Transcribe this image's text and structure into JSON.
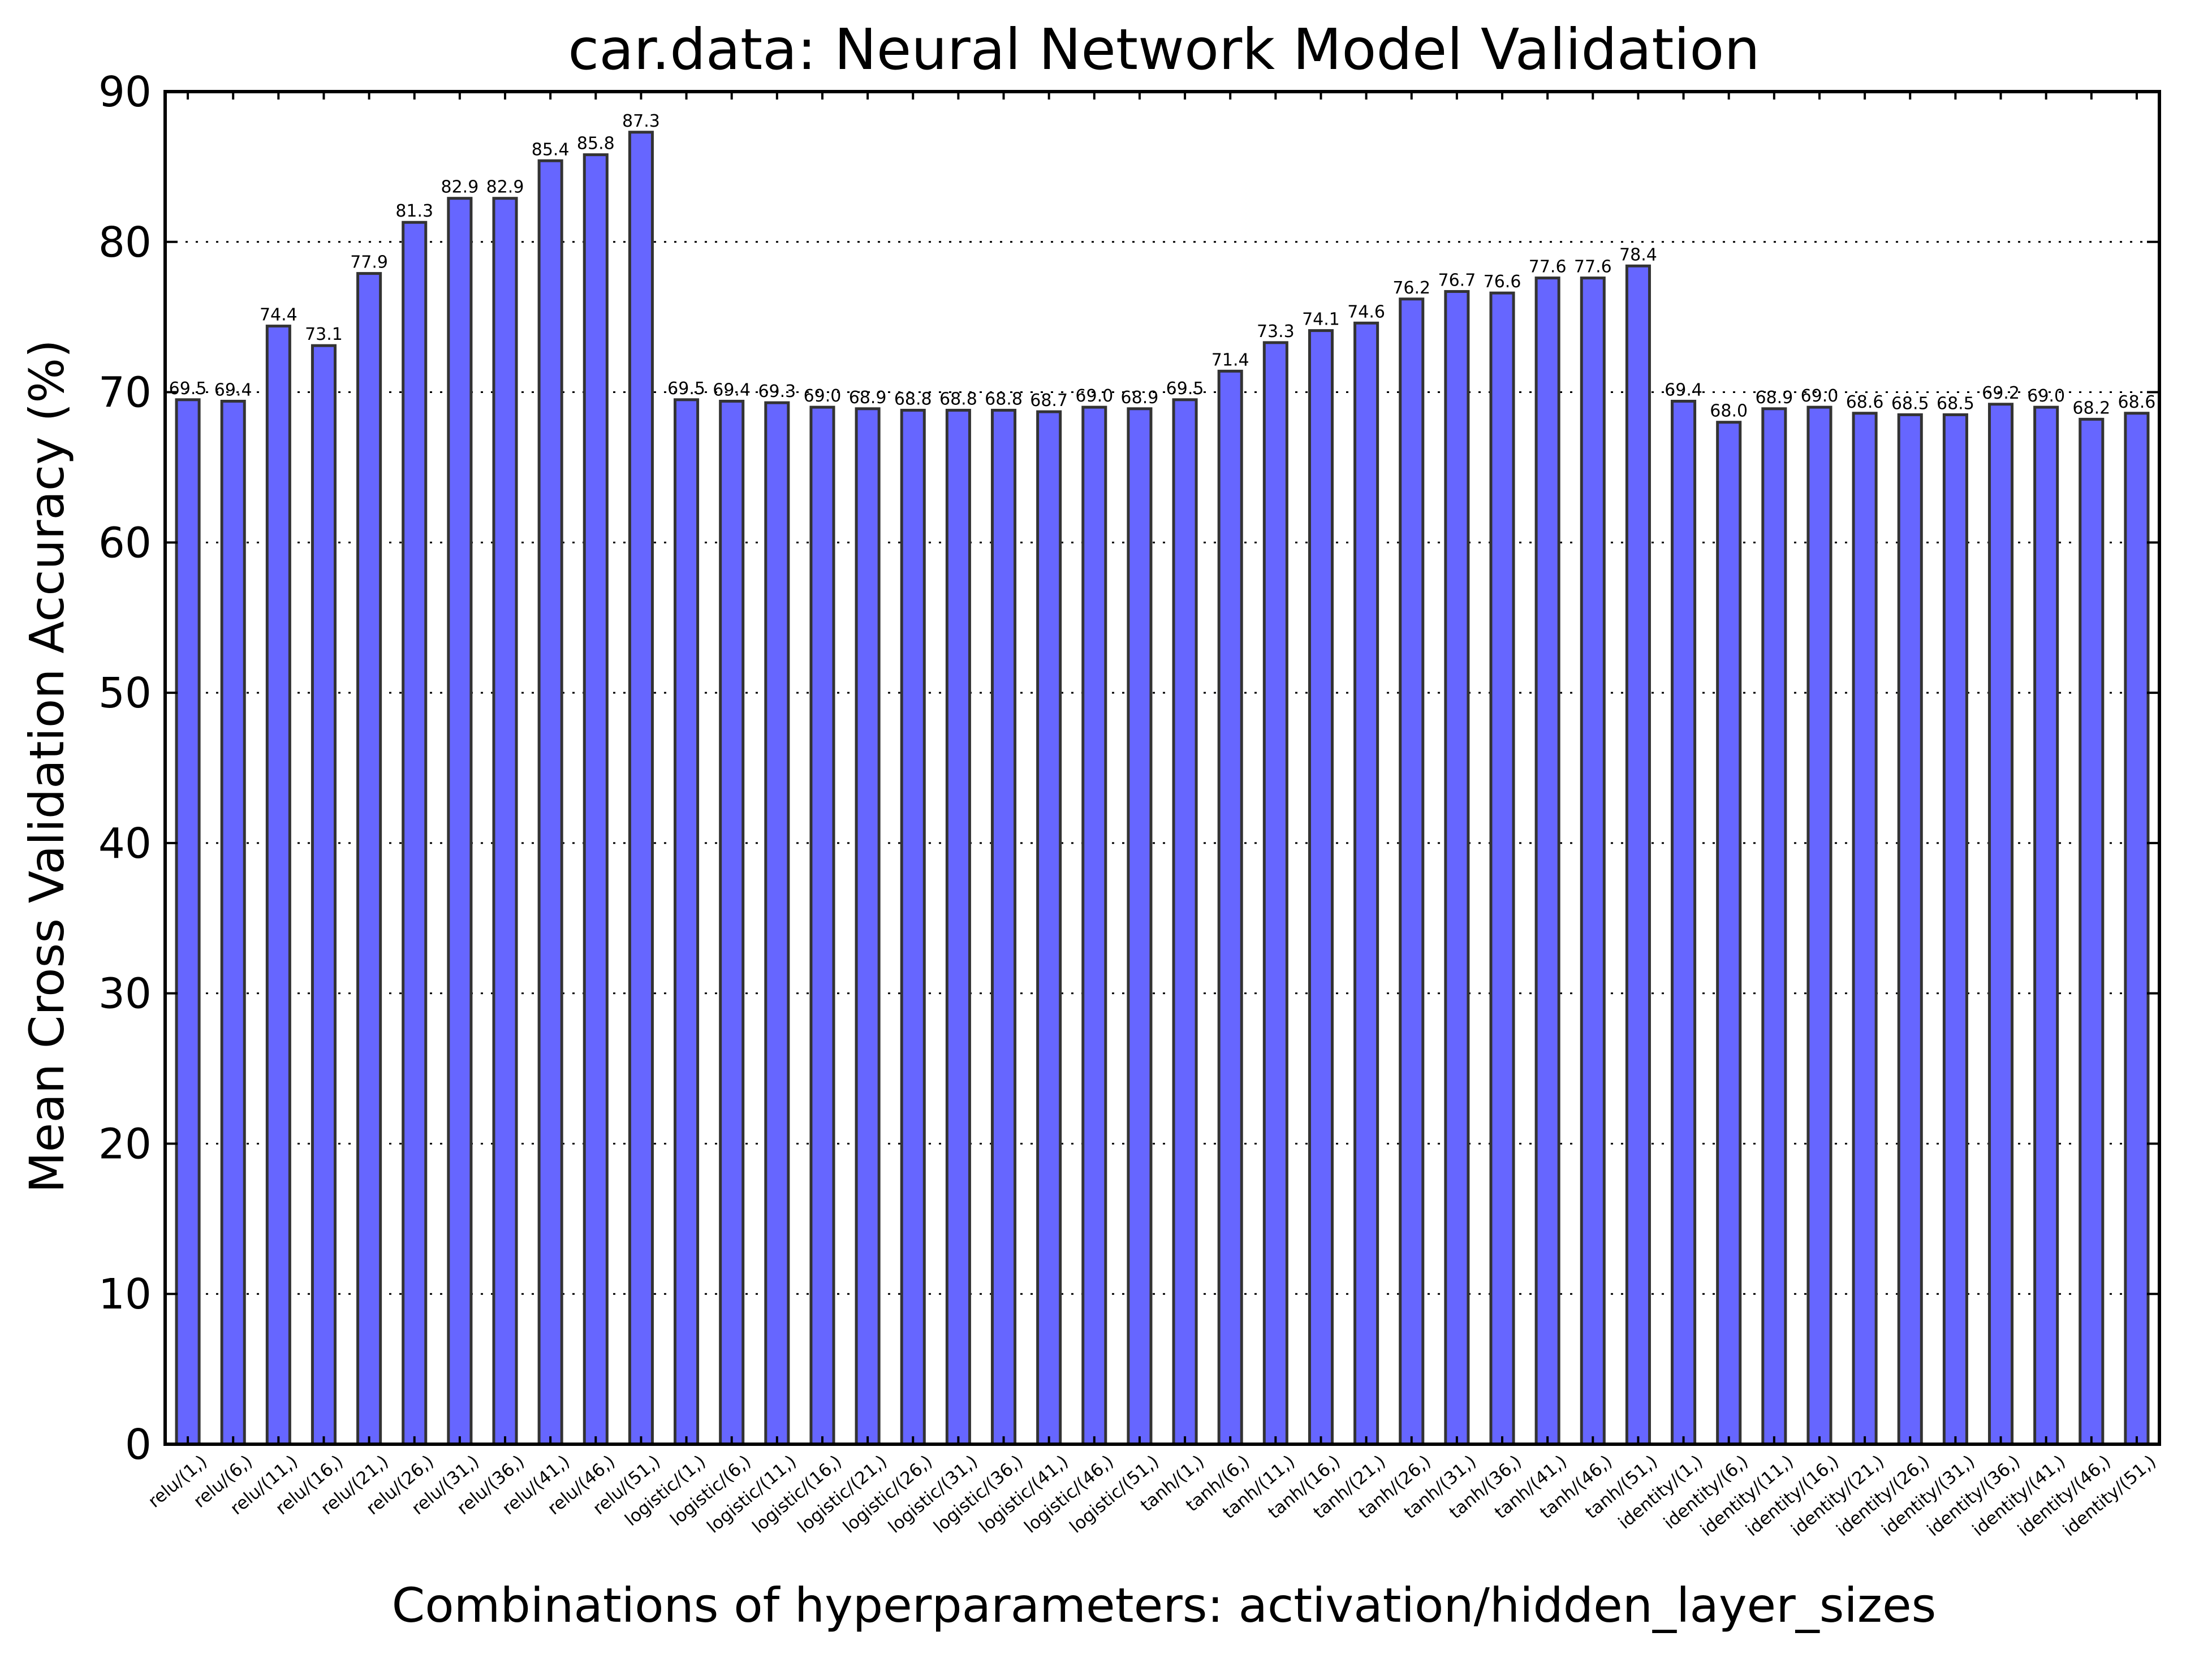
{
  "chart_data": {
    "type": "bar",
    "title": "car.data: Neural Network Model Validation",
    "xlabel": "Combinations of hyperparameters: activation/hidden_layer_sizes",
    "ylabel": "Mean Cross Validation Accuracy (%)",
    "ylim": [
      0,
      90
    ],
    "yticks": [
      "0",
      "10",
      "20",
      "30",
      "40",
      "50",
      "60",
      "70",
      "80",
      "90"
    ],
    "grid": "horizontal dotted",
    "bar_color": "#6666ff",
    "categories": [
      "relu/(1,)",
      "relu/(6,)",
      "relu/(11,)",
      "relu/(16,)",
      "relu/(21,)",
      "relu/(26,)",
      "relu/(31,)",
      "relu/(36,)",
      "relu/(41,)",
      "relu/(46,)",
      "relu/(51,)",
      "logistic/(1,)",
      "logistic/(6,)",
      "logistic/(11,)",
      "logistic/(16,)",
      "logistic/(21,)",
      "logistic/(26,)",
      "logistic/(31,)",
      "logistic/(36,)",
      "logistic/(41,)",
      "logistic/(46,)",
      "logistic/(51,)",
      "tanh/(1,)",
      "tanh/(6,)",
      "tanh/(11,)",
      "tanh/(16,)",
      "tanh/(21,)",
      "tanh/(26,)",
      "tanh/(31,)",
      "tanh/(36,)",
      "tanh/(41,)",
      "tanh/(46,)",
      "tanh/(51,)",
      "identity/(1,)",
      "identity/(6,)",
      "identity/(11,)",
      "identity/(16,)",
      "identity/(21,)",
      "identity/(26,)",
      "identity/(31,)",
      "identity/(36,)",
      "identity/(41,)",
      "identity/(46,)",
      "identity/(51,)"
    ],
    "values": [
      69.5,
      69.4,
      74.4,
      73.1,
      77.9,
      81.3,
      82.9,
      82.9,
      85.4,
      85.8,
      87.3,
      69.5,
      69.4,
      69.3,
      69.0,
      68.9,
      68.8,
      68.8,
      68.8,
      68.7,
      69.0,
      68.9,
      69.5,
      71.4,
      73.3,
      74.1,
      74.6,
      76.2,
      76.7,
      76.6,
      77.6,
      77.6,
      78.4,
      69.4,
      68.0,
      68.9,
      69.0,
      68.6,
      68.5,
      68.5,
      69.2,
      69.0,
      68.2,
      68.6
    ],
    "data_labels": [
      "69.5",
      "69.4",
      "74.4",
      "73.1",
      "77.9",
      "81.3",
      "82.9",
      "82.9",
      "85.4",
      "85.8",
      "87.3",
      "69.5",
      "69.4",
      "69.3",
      "69.0",
      "68.9",
      "68.8",
      "68.8",
      "68.8",
      "68.7",
      "69.0",
      "68.9",
      "69.5",
      "71.4",
      "73.3",
      "74.1",
      "74.6",
      "76.2",
      "76.7",
      "76.6",
      "77.6",
      "77.6",
      "78.4",
      "69.4",
      "68.0",
      "68.9",
      "69.0",
      "68.6",
      "68.5",
      "68.5",
      "69.2",
      "69.0",
      "68.2",
      "68.6"
    ]
  }
}
